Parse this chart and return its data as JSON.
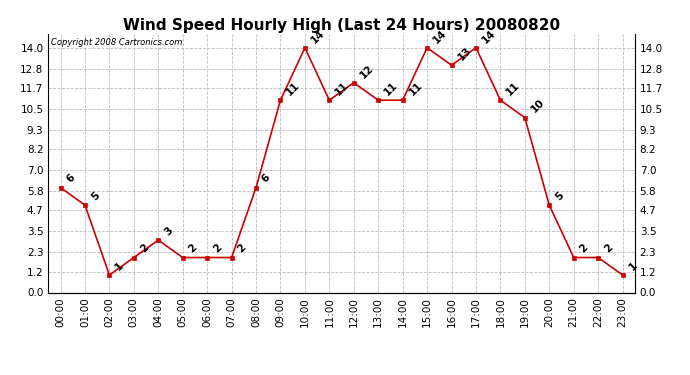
{
  "title": "Wind Speed Hourly High (Last 24 Hours) 20080820",
  "copyright": "Copyright 2008 Cartronics.com",
  "hours": [
    "00:00",
    "01:00",
    "02:00",
    "03:00",
    "04:00",
    "05:00",
    "06:00",
    "07:00",
    "08:00",
    "09:00",
    "10:00",
    "11:00",
    "12:00",
    "13:00",
    "14:00",
    "15:00",
    "16:00",
    "17:00",
    "18:00",
    "19:00",
    "20:00",
    "21:00",
    "22:00",
    "23:00"
  ],
  "values": [
    6,
    5,
    1,
    2,
    3,
    2,
    2,
    2,
    6,
    11,
    14,
    11,
    12,
    11,
    11,
    14,
    13,
    14,
    11,
    10,
    5,
    2,
    2,
    1
  ],
  "line_color": "#cc0000",
  "marker_color": "#cc0000",
  "bg_color": "#ffffff",
  "grid_color": "#bbbbbb",
  "title_fontsize": 11,
  "label_fontsize": 7.5,
  "yticks_left": [
    0.0,
    1.2,
    2.3,
    3.5,
    4.7,
    5.8,
    7.0,
    8.2,
    9.3,
    10.5,
    11.7,
    12.8,
    14.0
  ],
  "ylim": [
    0.0,
    14.8
  ],
  "annotation_fontsize": 7.5
}
